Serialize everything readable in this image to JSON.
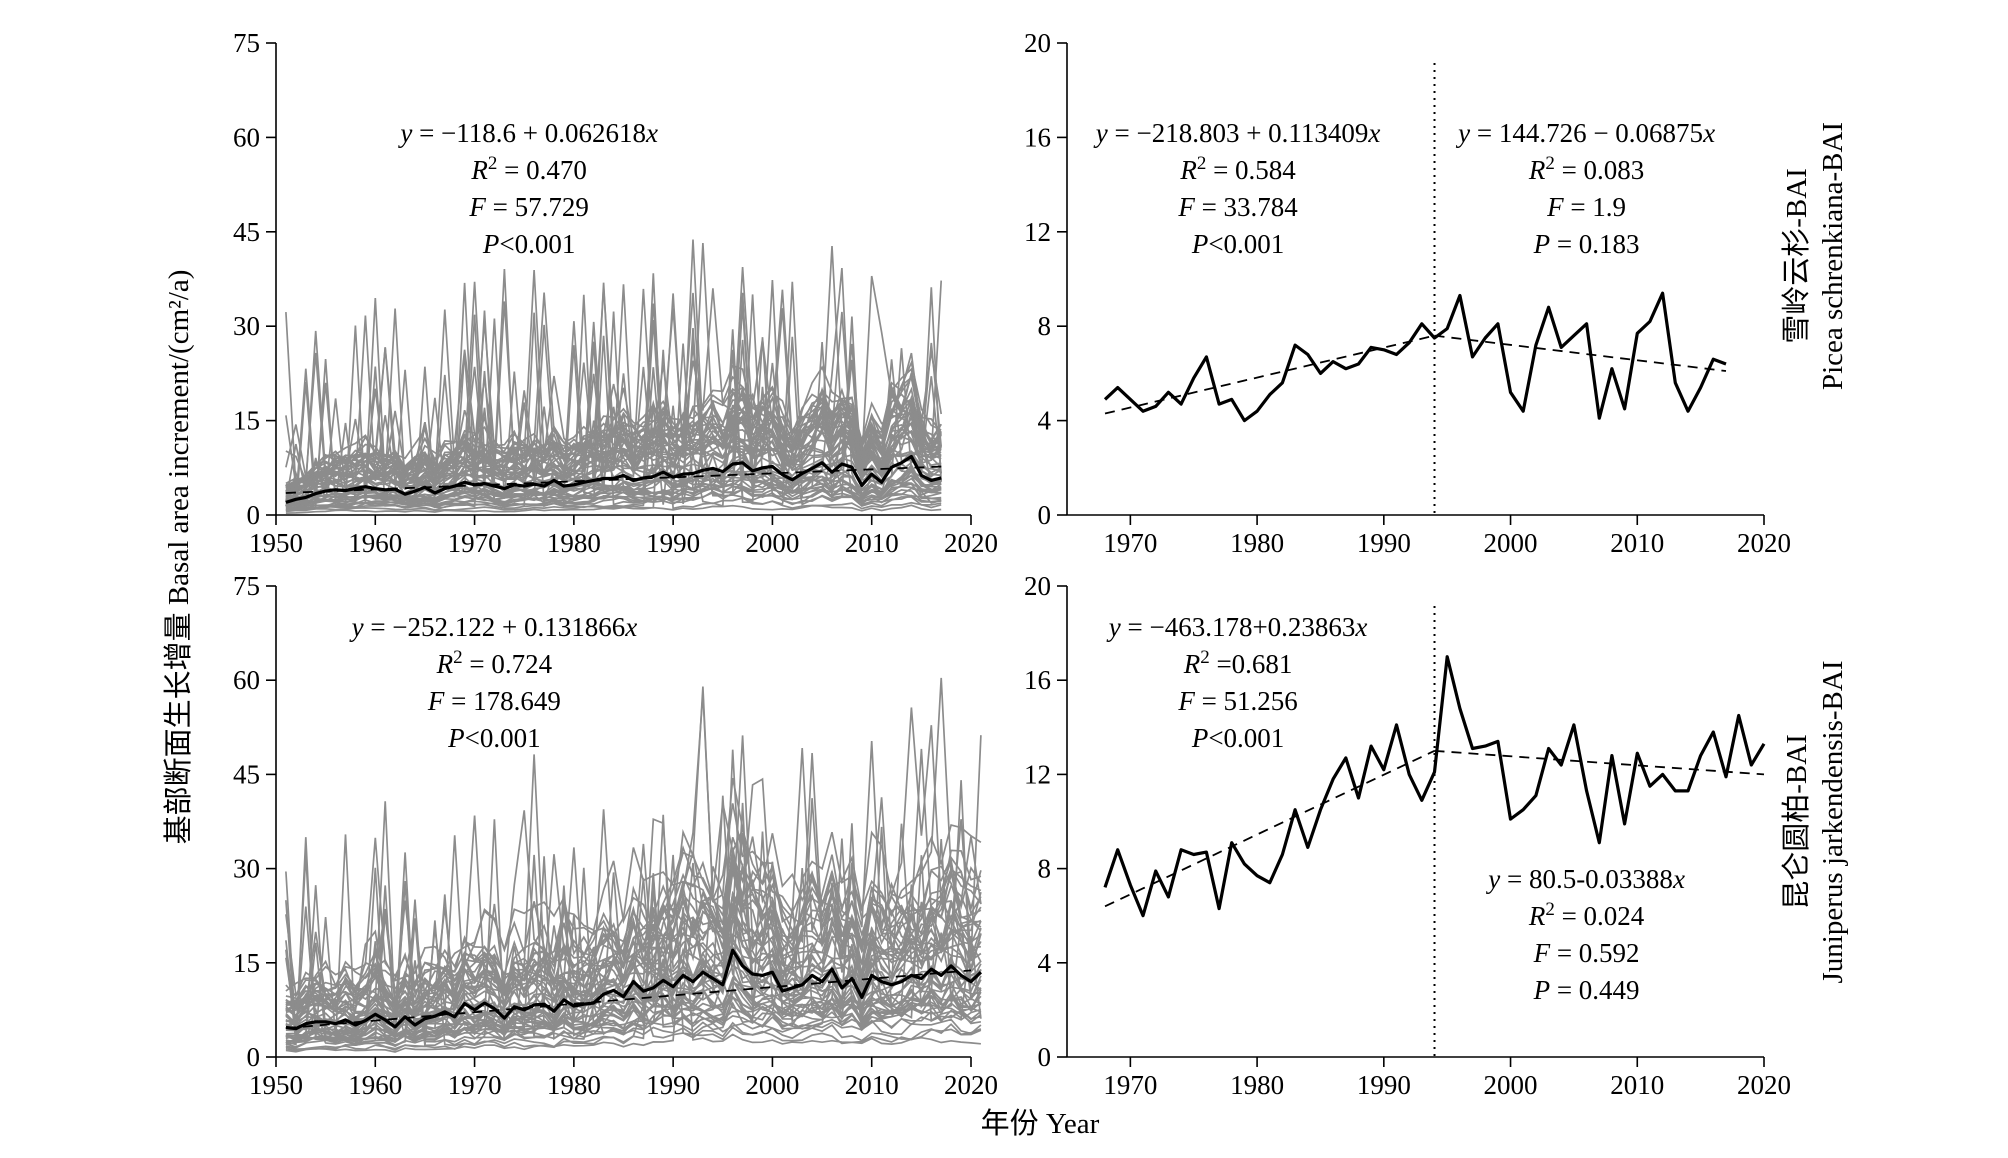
{
  "figure": {
    "ylabel": "基部断面生长增量 Basal area increment/(cm²/a)",
    "xlabel": "年份 Year",
    "row_labels": [
      {
        "cn": "雪岭云杉-BAI",
        "en": "Picea schrenkiana-BAI"
      },
      {
        "cn": "昆仑圆柏-BAI",
        "en": "Juniperus jarkendensis-BAI"
      }
    ]
  },
  "chart_data": [
    {
      "id": "top-left",
      "type": "line",
      "xlim": [
        1950,
        2020
      ],
      "ylim": [
        0,
        75
      ],
      "xticks": [
        1950,
        1960,
        1970,
        1980,
        1990,
        2000,
        2010,
        2020
      ],
      "yticks": [
        0,
        15,
        30,
        45,
        60,
        75
      ],
      "individual_series_count": 60,
      "mean_series": {
        "x_start": 1951,
        "values": [
          2.0,
          2.5,
          2.8,
          3.4,
          3.8,
          4.0,
          3.9,
          4.2,
          4.5,
          4.2,
          4.0,
          4.1,
          3.3,
          3.8,
          4.4,
          3.5,
          4.2,
          4.6,
          5.2,
          4.8,
          5.0,
          4.6,
          4.2,
          4.8,
          4.6,
          4.9,
          4.6,
          5.5,
          4.6,
          4.8,
          5.2,
          5.5,
          5.8,
          5.8,
          6.3,
          5.5,
          5.9,
          6.1,
          6.8,
          6.0,
          6.5,
          6.6,
          7.1,
          7.4,
          6.9,
          8.1,
          8.3,
          7.0,
          7.5,
          7.7,
          6.4,
          5.6,
          6.6,
          7.4,
          8.3,
          6.8,
          8.1,
          7.6,
          4.7,
          6.5,
          5.2,
          7.6,
          8.3,
          9.3,
          6.3,
          5.5,
          5.9
        ]
      },
      "mean_end_values": [
        6.4,
        6.0
      ],
      "trend": {
        "x": [
          1951,
          2017
        ],
        "y": [
          3.5,
          7.7
        ]
      },
      "annotation": [
        "y = −118.6 + 0.062618x",
        "R² = 0.470",
        "F = 57.729",
        "P<0.001"
      ]
    },
    {
      "id": "top-right",
      "type": "line",
      "xlim": [
        1965,
        2020
      ],
      "ylim": [
        0,
        20
      ],
      "xticks": [
        1970,
        1980,
        1990,
        2000,
        2010,
        2020
      ],
      "yticks": [
        0,
        4,
        8,
        12,
        16,
        20
      ],
      "breakpoint_x": 1994,
      "series": {
        "x_start": 1968,
        "values": [
          4.9,
          5.4,
          4.9,
          4.4,
          4.6,
          5.2,
          4.7,
          5.8,
          6.7,
          4.7,
          4.9,
          4.0,
          4.4,
          5.1,
          5.6,
          7.2,
          6.8,
          6.0,
          6.5,
          6.2,
          6.4,
          7.1,
          7.0,
          6.8,
          7.3,
          8.1,
          7.5,
          7.9,
          9.3,
          6.7,
          7.5,
          8.1,
          5.2,
          4.4,
          7.2,
          8.8,
          7.1,
          7.6,
          8.1,
          4.1,
          6.2,
          4.5,
          7.7,
          8.2,
          9.4,
          5.6,
          4.4,
          5.4,
          6.6,
          6.4
        ]
      },
      "trend_early": {
        "x": [
          1968,
          1994
        ],
        "y": [
          4.3,
          7.6
        ]
      },
      "trend_late": {
        "x": [
          1994,
          2017
        ],
        "y": [
          7.6,
          6.1
        ]
      },
      "annotation_early": [
        "y = −218.803 + 0.113409x",
        "R² = 0.584",
        "F = 33.784",
        "P<0.001"
      ],
      "annotation_late": [
        "y = 144.726 − 0.06875x",
        "R² = 0.083",
        "F = 1.9",
        "P = 0.183"
      ]
    },
    {
      "id": "bottom-left",
      "type": "line",
      "xlim": [
        1950,
        2020
      ],
      "ylim": [
        0,
        75
      ],
      "xticks": [
        1950,
        1960,
        1970,
        1980,
        1990,
        2000,
        2010,
        2020
      ],
      "yticks": [
        0,
        15,
        30,
        45,
        60,
        75
      ],
      "individual_series_count": 55,
      "mean_series": {
        "x_start": 1951,
        "values": [
          4.7,
          4.5,
          5.3,
          5.6,
          5.6,
          5.3,
          5.9,
          5.1,
          5.8,
          6.8,
          5.9,
          4.8,
          6.4,
          5.1,
          6.1,
          6.5,
          7.2,
          6.4,
          8.5,
          7.5,
          8.6,
          7.7,
          6.2,
          8.0,
          7.5,
          8.3,
          8.4,
          7.3,
          9.1,
          8.1,
          8.4,
          8.6,
          10.0,
          10.6,
          9.6,
          12.0,
          10.5,
          11.0,
          12.2,
          11.2,
          13.0,
          12.0,
          13.5,
          12.5,
          11.5,
          17.0,
          14.5,
          13.2,
          13.0,
          13.5,
          10.5,
          11.0,
          11.5,
          13.0,
          12.0,
          14.0,
          11.0,
          12.5,
          9.5,
          13.0,
          12.0,
          11.5,
          12.0,
          13.0,
          12.5,
          14.0,
          13.0,
          14.5,
          13.0,
          12.0,
          13.5
        ]
      },
      "trend": {
        "x": [
          1951,
          2020
        ],
        "y": [
          4.6,
          13.8
        ]
      },
      "annotation": [
        "y = −252.122 + 0.131866x",
        "R² = 0.724",
        "F = 178.649",
        "P<0.001"
      ]
    },
    {
      "id": "bottom-right",
      "type": "line",
      "xlim": [
        1965,
        2020
      ],
      "ylim": [
        0,
        20
      ],
      "xticks": [
        1970,
        1980,
        1990,
        2000,
        2010,
        2020
      ],
      "yticks": [
        0,
        4,
        8,
        12,
        16,
        20
      ],
      "breakpoint_x": 1994,
      "series": {
        "x_start": 1968,
        "values": [
          7.2,
          8.8,
          7.3,
          6.0,
          7.9,
          6.8,
          8.8,
          8.6,
          8.7,
          6.3,
          9.1,
          8.2,
          7.7,
          7.4,
          8.6,
          10.5,
          8.9,
          10.5,
          11.8,
          12.7,
          11.0,
          13.2,
          12.2,
          14.1,
          12.0,
          10.9,
          12.1,
          17.0,
          14.8,
          13.1,
          13.2,
          13.4,
          10.1,
          10.5,
          11.1,
          13.1,
          12.4,
          14.1,
          11.3,
          9.1,
          12.8,
          9.9,
          12.9,
          11.5,
          12.0,
          11.3,
          11.3,
          12.8,
          13.8,
          11.9,
          14.5,
          12.4,
          13.3
        ]
      },
      "trend_early": {
        "x": [
          1968,
          1994
        ],
        "y": [
          6.4,
          13.0
        ]
      },
      "trend_late": {
        "x": [
          1994,
          2020
        ],
        "y": [
          13.0,
          12.0
        ]
      },
      "annotation_early": [
        "y = −463.178+0.23863x",
        "R² =0.681",
        "F = 51.256",
        "P<0.001"
      ],
      "annotation_late": [
        "y = 80.5-0.03388x",
        "R² = 0.024",
        "F = 0.592",
        "P = 0.449"
      ]
    }
  ]
}
